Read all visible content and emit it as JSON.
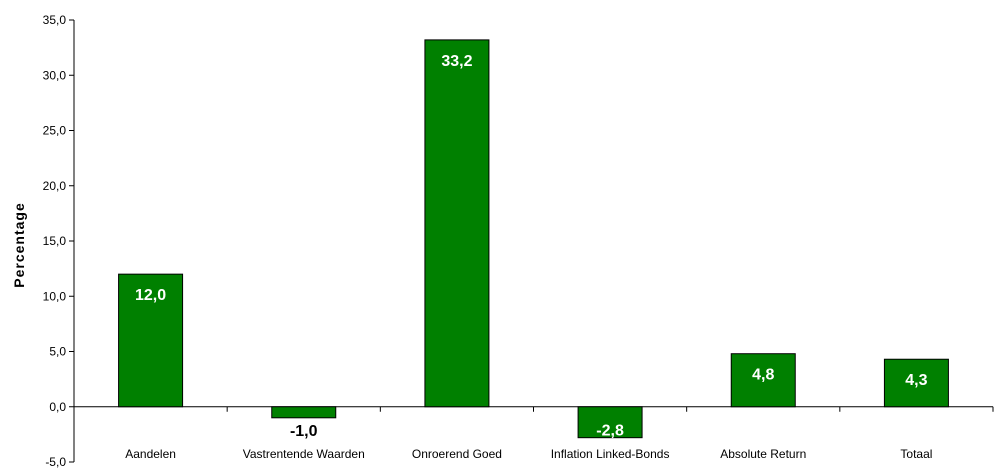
{
  "chart_data": {
    "type": "bar",
    "ylabel": "Percentage",
    "ylim": [
      -5.0,
      35.0
    ],
    "yticks": [
      "-5,0",
      "0,0",
      "5,0",
      "10,0",
      "15,0",
      "20,0",
      "25,0",
      "30,0",
      "35,0"
    ],
    "ytick_values": [
      -5,
      0,
      5,
      10,
      15,
      20,
      25,
      30,
      35
    ],
    "grid": false,
    "categories": [
      "Aandelen",
      "Vastrentende Waarden",
      "Onroerend Goed",
      "Inflation Linked-Bonds",
      "Absolute Return",
      "Totaal"
    ],
    "values": [
      12.0,
      -1.0,
      33.2,
      -2.8,
      4.8,
      4.3
    ],
    "data_labels": [
      "12,0",
      "-1,0",
      "33,2",
      "-2,8",
      "4,8",
      "4,3"
    ],
    "bar_color": "#008000",
    "label_color_inside": "#ffffff",
    "label_color_outside": "#000000"
  }
}
